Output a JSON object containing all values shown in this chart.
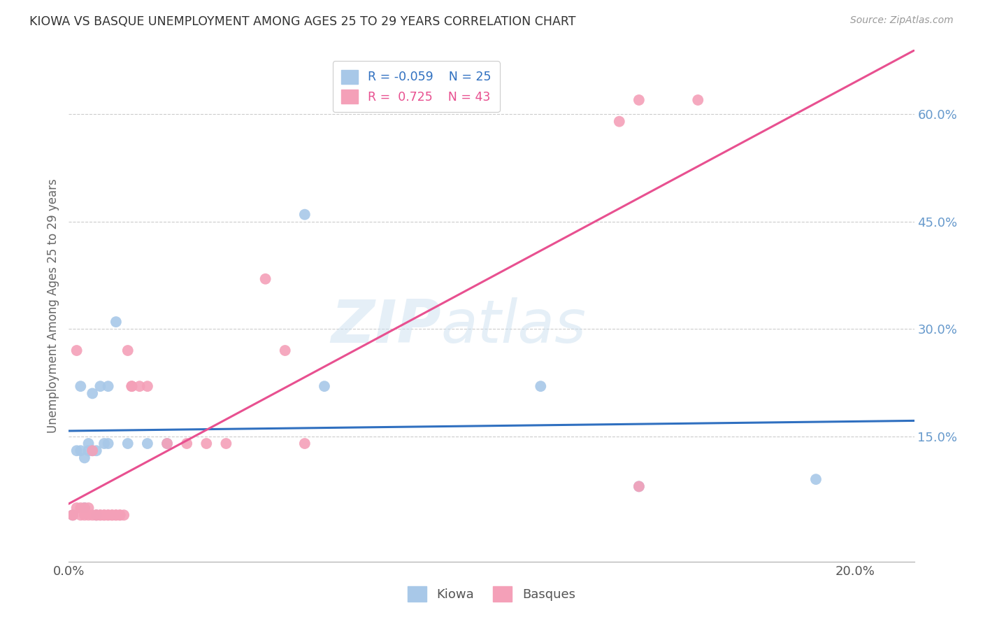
{
  "title": "KIOWA VS BASQUE UNEMPLOYMENT AMONG AGES 25 TO 29 YEARS CORRELATION CHART",
  "source": "Source: ZipAtlas.com",
  "ylabel": "Unemployment Among Ages 25 to 29 years",
  "watermark_zip": "ZIP",
  "watermark_atlas": "atlas",
  "x_tick_positions": [
    0.0,
    0.05,
    0.1,
    0.15,
    0.2
  ],
  "x_tick_labels": [
    "0.0%",
    "",
    "",
    "",
    "20.0%"
  ],
  "y_ticks_right": [
    0.15,
    0.3,
    0.45,
    0.6
  ],
  "y_tick_labels_right": [
    "15.0%",
    "30.0%",
    "45.0%",
    "60.0%"
  ],
  "xlim": [
    0.0,
    0.215
  ],
  "ylim": [
    -0.025,
    0.69
  ],
  "kiowa_color": "#a8c8e8",
  "basque_color": "#f4a0b8",
  "kiowa_R": -0.059,
  "kiowa_N": 25,
  "basque_R": 0.725,
  "basque_N": 43,
  "legend_label_kiowa": "Kiowa",
  "legend_label_basque": "Basques",
  "kiowa_line_color": "#3070c0",
  "basque_line_color": "#e85090",
  "kiowa_points": [
    [
      0.001,
      0.04
    ],
    [
      0.002,
      0.13
    ],
    [
      0.003,
      0.13
    ],
    [
      0.003,
      0.22
    ],
    [
      0.004,
      0.05
    ],
    [
      0.004,
      0.12
    ],
    [
      0.005,
      0.13
    ],
    [
      0.005,
      0.14
    ],
    [
      0.006,
      0.13
    ],
    [
      0.006,
      0.21
    ],
    [
      0.007,
      0.04
    ],
    [
      0.007,
      0.13
    ],
    [
      0.008,
      0.22
    ],
    [
      0.009,
      0.14
    ],
    [
      0.01,
      0.14
    ],
    [
      0.01,
      0.22
    ],
    [
      0.012,
      0.31
    ],
    [
      0.015,
      0.14
    ],
    [
      0.02,
      0.14
    ],
    [
      0.025,
      0.14
    ],
    [
      0.06,
      0.46
    ],
    [
      0.065,
      0.22
    ],
    [
      0.12,
      0.22
    ],
    [
      0.145,
      0.08
    ],
    [
      0.19,
      0.09
    ]
  ],
  "basque_points": [
    [
      0.001,
      0.04
    ],
    [
      0.001,
      0.04
    ],
    [
      0.002,
      0.05
    ],
    [
      0.002,
      0.27
    ],
    [
      0.003,
      0.04
    ],
    [
      0.003,
      0.05
    ],
    [
      0.004,
      0.04
    ],
    [
      0.004,
      0.05
    ],
    [
      0.005,
      0.04
    ],
    [
      0.005,
      0.05
    ],
    [
      0.006,
      0.04
    ],
    [
      0.006,
      0.13
    ],
    [
      0.007,
      0.04
    ],
    [
      0.007,
      0.04
    ],
    [
      0.008,
      0.04
    ],
    [
      0.008,
      0.04
    ],
    [
      0.009,
      0.04
    ],
    [
      0.009,
      0.04
    ],
    [
      0.01,
      0.04
    ],
    [
      0.01,
      0.04
    ],
    [
      0.011,
      0.04
    ],
    [
      0.011,
      0.04
    ],
    [
      0.012,
      0.04
    ],
    [
      0.012,
      0.04
    ],
    [
      0.013,
      0.04
    ],
    [
      0.013,
      0.04
    ],
    [
      0.014,
      0.04
    ],
    [
      0.015,
      0.27
    ],
    [
      0.016,
      0.22
    ],
    [
      0.016,
      0.22
    ],
    [
      0.018,
      0.22
    ],
    [
      0.02,
      0.22
    ],
    [
      0.025,
      0.14
    ],
    [
      0.03,
      0.14
    ],
    [
      0.035,
      0.14
    ],
    [
      0.04,
      0.14
    ],
    [
      0.05,
      0.37
    ],
    [
      0.055,
      0.27
    ],
    [
      0.06,
      0.14
    ],
    [
      0.14,
      0.59
    ],
    [
      0.145,
      0.62
    ],
    [
      0.16,
      0.62
    ],
    [
      0.145,
      0.08
    ]
  ],
  "background_color": "#ffffff",
  "grid_color": "#cccccc",
  "title_color": "#333333",
  "right_axis_color": "#6699cc"
}
